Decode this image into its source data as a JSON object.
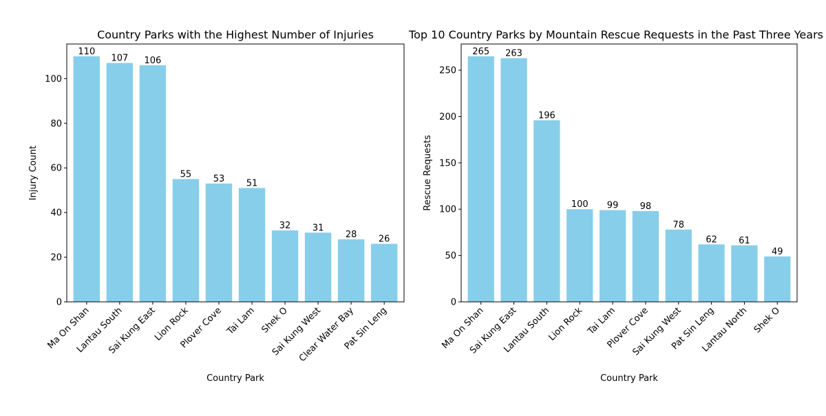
{
  "chart_data": [
    {
      "type": "bar",
      "title": "Country Parks with the Highest Number of Injuries",
      "xlabel": "Country Park",
      "ylabel": "Injury Count",
      "categories": [
        "Ma On Shan",
        "Lantau South",
        "Sai Kung East",
        "Lion Rock",
        "Plover Cove",
        "Tai Lam",
        "Shek O",
        "Sai Kung West",
        "Clear Water Bay",
        "Pat Sin Leng"
      ],
      "values": [
        110,
        107,
        106,
        55,
        53,
        51,
        32,
        31,
        28,
        26
      ],
      "ylim": [
        0,
        115.5
      ],
      "yticks": [
        0,
        20,
        40,
        60,
        80,
        100
      ],
      "bar_color": "#87ceeb",
      "grid": false,
      "legend": "none"
    },
    {
      "type": "bar",
      "title": "Top 10 Country Parks by Mountain Rescue Requests in the Past Three Years",
      "xlabel": "Country Park",
      "ylabel": "Rescue Requests",
      "categories": [
        "Ma On Shan",
        "Sai Kung East",
        "Lantau South",
        "Lion Rock",
        "Tai Lam",
        "Plover Cove",
        "Sai Kung West",
        "Pat Sin Leng",
        "Lantau North",
        "Shek O"
      ],
      "values": [
        265,
        263,
        196,
        100,
        99,
        98,
        78,
        62,
        61,
        49
      ],
      "ylim": [
        0,
        278.25
      ],
      "yticks": [
        0,
        50,
        100,
        150,
        200,
        250
      ],
      "bar_color": "#87ceeb",
      "grid": false,
      "legend": "none"
    }
  ]
}
